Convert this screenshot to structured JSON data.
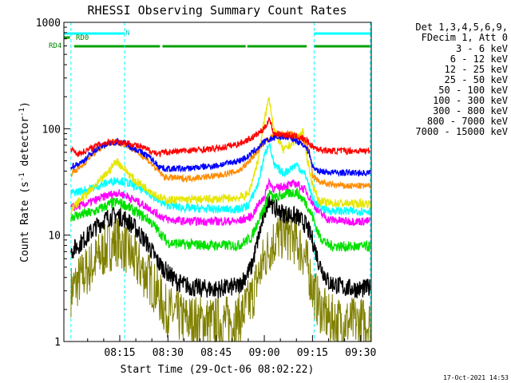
{
  "chart_data": {
    "type": "line",
    "title": "RHESSI Observing Summary Count Rates",
    "xlabel": "Start Time (29-Oct-06 08:02:22)",
    "ylabel_main": "Count Rate (s",
    "ylabel_sup1": "-1",
    "ylabel_mid": " detector",
    "ylabel_sup2": "-1",
    "ylabel_end": ")",
    "yscale": "log",
    "ylim": [
      1,
      1000
    ],
    "xlim_minutes": [
      -2.4,
      93.3
    ],
    "x_ticks": [
      "08:15",
      "08:30",
      "08:45",
      "09:00",
      "09:15",
      "09:30"
    ],
    "x_tick_minutes": [
      15,
      30,
      45,
      60,
      75,
      90
    ],
    "y_ticks": [
      "1",
      "10",
      "100",
      "1000"
    ],
    "y_tick_values": [
      1,
      10,
      100,
      1000
    ],
    "timestamp": "17-Oct-2021 14:53",
    "legend": {
      "header1": "Det 1,3,4,5,6,9,",
      "header2": "FDecim 1, Att 0",
      "entries": [
        {
          "label": "3 - 6 keV",
          "color": "#000000"
        },
        {
          "label": "6 - 12 keV",
          "color": "#ff00ff"
        },
        {
          "label": "12 - 25 keV",
          "color": "#00e000"
        },
        {
          "label": "25 - 50 keV",
          "color": "#00ffff"
        },
        {
          "label": "50 - 100 keV",
          "color": "#e6e600"
        },
        {
          "label": "100 - 300 keV",
          "color": "#ff0000"
        },
        {
          "label": "300 - 800 keV",
          "color": "#0000ff"
        },
        {
          "label": "800 - 7000 keV",
          "color": "#ff8c00"
        },
        {
          "label": "7000 - 15000 keV",
          "color": "#808000"
        }
      ]
    },
    "flags": [
      {
        "name": "N",
        "color": "#00ffff",
        "intervals": [
          [
            -2.4,
            16.5
          ],
          [
            75.5,
            93.3
          ]
        ]
      },
      {
        "name": "RD0",
        "color": "#00a000",
        "intervals": [
          [
            -2.4,
            -0.5
          ]
        ]
      },
      {
        "name": "RD4",
        "color": "#00a000",
        "intervals": [
          [
            0.8,
            27.5
          ],
          [
            28.3,
            54.2
          ],
          [
            54.7,
            73.2
          ],
          [
            75.5,
            93.3
          ]
        ]
      }
    ],
    "boundaries_minutes": [
      -0.2,
      16.5,
      75.5,
      93.0
    ],
    "night_minutes": [
      [
        16.5,
        75.5
      ]
    ],
    "attenuator_steps_minutes": [
      28.5,
      54.5
    ],
    "series": [
      {
        "name": "3 - 6 keV",
        "color": "#000000",
        "points": [
          [
            -0.2,
            7.0
          ],
          [
            3,
            8.5
          ],
          [
            7,
            11.5
          ],
          [
            11,
            14.5
          ],
          [
            14,
            15.5
          ],
          [
            17,
            14.0
          ],
          [
            20,
            11.5
          ],
          [
            24,
            8.0
          ],
          [
            27,
            5.5
          ],
          [
            30,
            4.4
          ],
          [
            33,
            3.6
          ],
          [
            38,
            3.2
          ],
          [
            45,
            3.1
          ],
          [
            52,
            3.3
          ],
          [
            56,
            5.0
          ],
          [
            58,
            9.0
          ],
          [
            60,
            16.0
          ],
          [
            61.5,
            23.0
          ],
          [
            63,
            18.0
          ],
          [
            66,
            16.0
          ],
          [
            70,
            15.0
          ],
          [
            73,
            12.5
          ],
          [
            75,
            9.0
          ],
          [
            77,
            5.5
          ],
          [
            80,
            3.6
          ],
          [
            85,
            3.2
          ],
          [
            90,
            3.1
          ],
          [
            93,
            3.2
          ]
        ]
      },
      {
        "name": "6 - 12 keV",
        "color": "#ff00ff",
        "points": [
          [
            -0.2,
            18.0
          ],
          [
            3,
            19.0
          ],
          [
            7,
            21.0
          ],
          [
            11,
            23.5
          ],
          [
            14,
            25.0
          ],
          [
            17,
            23.5
          ],
          [
            20,
            21.0
          ],
          [
            24,
            18.0
          ],
          [
            27,
            15.5
          ],
          [
            30,
            14.0
          ],
          [
            35,
            13.5
          ],
          [
            45,
            13.5
          ],
          [
            52,
            13.5
          ],
          [
            56,
            15.0
          ],
          [
            58,
            19.0
          ],
          [
            60,
            23.0
          ],
          [
            61.5,
            32.0
          ],
          [
            63,
            27.0
          ],
          [
            66,
            29.0
          ],
          [
            70,
            30.5
          ],
          [
            73,
            26.0
          ],
          [
            75,
            20.0
          ],
          [
            77,
            16.5
          ],
          [
            80,
            14.0
          ],
          [
            85,
            13.5
          ],
          [
            93,
            13.5
          ]
        ]
      },
      {
        "name": "12 - 25 keV",
        "color": "#00e000",
        "points": [
          [
            -0.2,
            15.0
          ],
          [
            3,
            15.5
          ],
          [
            7,
            16.5
          ],
          [
            11,
            19.0
          ],
          [
            14,
            20.5
          ],
          [
            17,
            19.0
          ],
          [
            20,
            16.5
          ],
          [
            24,
            14.0
          ],
          [
            27,
            11.0
          ],
          [
            30,
            8.5
          ],
          [
            35,
            8.2
          ],
          [
            45,
            8.0
          ],
          [
            52,
            8.0
          ],
          [
            56,
            9.5
          ],
          [
            58,
            13.5
          ],
          [
            60,
            18.0
          ],
          [
            61.5,
            25.0
          ],
          [
            63,
            22.0
          ],
          [
            66,
            24.0
          ],
          [
            70,
            25.5
          ],
          [
            73,
            20.0
          ],
          [
            75,
            15.0
          ],
          [
            77,
            10.0
          ],
          [
            80,
            8.0
          ],
          [
            85,
            7.8
          ],
          [
            93,
            7.8
          ]
        ]
      },
      {
        "name": "25 - 50 keV",
        "color": "#00ffff",
        "points": [
          [
            -0.2,
            25.0
          ],
          [
            3,
            26.0
          ],
          [
            7,
            28.0
          ],
          [
            11,
            31.0
          ],
          [
            14,
            33.0
          ],
          [
            17,
            31.5
          ],
          [
            20,
            28.5
          ],
          [
            24,
            25.0
          ],
          [
            27,
            21.0
          ],
          [
            29,
            19.5
          ],
          [
            35,
            18.0
          ],
          [
            45,
            17.5
          ],
          [
            52,
            17.5
          ],
          [
            55,
            19.0
          ],
          [
            58,
            30.0
          ],
          [
            60,
            55.0
          ],
          [
            61.5,
            75.0
          ],
          [
            63,
            45.0
          ],
          [
            66,
            38.0
          ],
          [
            70,
            46.0
          ],
          [
            73,
            36.0
          ],
          [
            75,
            22.0
          ],
          [
            77,
            18.5
          ],
          [
            80,
            17.0
          ],
          [
            85,
            16.8
          ],
          [
            93,
            16.8
          ]
        ]
      },
      {
        "name": "50 - 100 keV",
        "color": "#e6e600",
        "points": [
          [
            -0.2,
            17.0
          ],
          [
            3,
            22.0
          ],
          [
            7,
            28.0
          ],
          [
            11,
            38.0
          ],
          [
            14,
            50.0
          ],
          [
            17,
            40.0
          ],
          [
            20,
            32.0
          ],
          [
            24,
            27.0
          ],
          [
            27,
            23.0
          ],
          [
            29,
            21.5
          ],
          [
            35,
            21.5
          ],
          [
            45,
            21.8
          ],
          [
            52,
            22.5
          ],
          [
            55,
            24.0
          ],
          [
            58,
            50.0
          ],
          [
            60,
            120.0
          ],
          [
            61.5,
            200.0
          ],
          [
            63,
            100.0
          ],
          [
            66,
            62.0
          ],
          [
            70,
            80.0
          ],
          [
            72,
            95.0
          ],
          [
            73,
            60.0
          ],
          [
            75,
            30.0
          ],
          [
            77,
            21.0
          ],
          [
            80,
            20.0
          ],
          [
            85,
            19.8
          ],
          [
            93,
            19.8
          ]
        ]
      },
      {
        "name": "100 - 300 keV",
        "color": "#ff0000",
        "points": [
          [
            -0.2,
            65.0
          ],
          [
            2,
            58.0
          ],
          [
            5,
            63.0
          ],
          [
            8,
            70.0
          ],
          [
            11,
            75.0
          ],
          [
            14,
            76.0
          ],
          [
            17,
            74.0
          ],
          [
            20,
            70.0
          ],
          [
            24,
            63.0
          ],
          [
            27,
            58.0
          ],
          [
            29,
            60.0
          ],
          [
            35,
            62.0
          ],
          [
            45,
            65.0
          ],
          [
            52,
            72.0
          ],
          [
            56,
            82.0
          ],
          [
            58,
            90.0
          ],
          [
            60,
            100.0
          ],
          [
            61.5,
            125.0
          ],
          [
            63,
            90.0
          ],
          [
            66,
            88.0
          ],
          [
            70,
            85.0
          ],
          [
            73,
            78.0
          ],
          [
            75,
            68.0
          ],
          [
            77,
            64.0
          ],
          [
            80,
            62.0
          ],
          [
            85,
            62.0
          ],
          [
            93,
            62.0
          ]
        ]
      },
      {
        "name": "300 - 800 keV",
        "color": "#0000ff",
        "points": [
          [
            -0.2,
            44.0
          ],
          [
            3,
            48.0
          ],
          [
            6,
            58.0
          ],
          [
            9,
            68.0
          ],
          [
            12,
            74.0
          ],
          [
            14,
            75.0
          ],
          [
            17,
            72.0
          ],
          [
            20,
            64.0
          ],
          [
            24,
            55.0
          ],
          [
            27,
            45.0
          ],
          [
            29,
            42.0
          ],
          [
            35,
            42.0
          ],
          [
            45,
            45.0
          ],
          [
            52,
            50.0
          ],
          [
            55,
            55.0
          ],
          [
            58,
            66.0
          ],
          [
            60,
            75.0
          ],
          [
            62,
            80.0
          ],
          [
            64,
            83.0
          ],
          [
            66,
            84.0
          ],
          [
            69,
            80.0
          ],
          [
            72,
            72.0
          ],
          [
            74,
            60.0
          ],
          [
            75,
            44.0
          ],
          [
            77,
            40.0
          ],
          [
            80,
            39.0
          ],
          [
            85,
            38.5
          ],
          [
            93,
            38.5
          ]
        ]
      },
      {
        "name": "800 - 7000 keV",
        "color": "#ff8c00",
        "points": [
          [
            -0.2,
            38.0
          ],
          [
            3,
            44.0
          ],
          [
            6,
            56.0
          ],
          [
            9,
            66.0
          ],
          [
            12,
            73.0
          ],
          [
            14,
            75.0
          ],
          [
            17,
            71.0
          ],
          [
            20,
            62.0
          ],
          [
            24,
            50.0
          ],
          [
            27,
            40.0
          ],
          [
            29,
            35.0
          ],
          [
            35,
            34.0
          ],
          [
            45,
            36.0
          ],
          [
            52,
            40.0
          ],
          [
            55,
            48.0
          ],
          [
            58,
            62.0
          ],
          [
            60,
            75.0
          ],
          [
            62,
            83.0
          ],
          [
            64,
            87.0
          ],
          [
            66,
            90.0
          ],
          [
            69,
            88.0
          ],
          [
            72,
            78.0
          ],
          [
            74,
            62.0
          ],
          [
            75,
            36.0
          ],
          [
            77,
            32.0
          ],
          [
            80,
            30.0
          ],
          [
            85,
            29.0
          ],
          [
            93,
            29.0
          ]
        ]
      },
      {
        "name": "7000 - 15000 keV",
        "color": "#808000",
        "points": [
          [
            -0.2,
            3.0
          ],
          [
            3,
            4.0
          ],
          [
            7,
            5.5
          ],
          [
            11,
            7.5
          ],
          [
            14,
            9.0
          ],
          [
            17,
            7.5
          ],
          [
            20,
            5.5
          ],
          [
            24,
            4.0
          ],
          [
            27,
            2.8
          ],
          [
            29,
            2.0
          ],
          [
            35,
            1.6
          ],
          [
            45,
            1.5
          ],
          [
            52,
            1.6
          ],
          [
            56,
            2.5
          ],
          [
            58,
            4.0
          ],
          [
            60,
            6.0
          ],
          [
            62,
            8.0
          ],
          [
            64,
            9.5
          ],
          [
            66,
            10.5
          ],
          [
            69,
            9.5
          ],
          [
            72,
            7.0
          ],
          [
            74,
            4.5
          ],
          [
            75,
            3.2
          ],
          [
            77,
            2.2
          ],
          [
            80,
            1.6
          ],
          [
            85,
            1.5
          ],
          [
            93,
            1.5
          ]
        ]
      }
    ]
  }
}
